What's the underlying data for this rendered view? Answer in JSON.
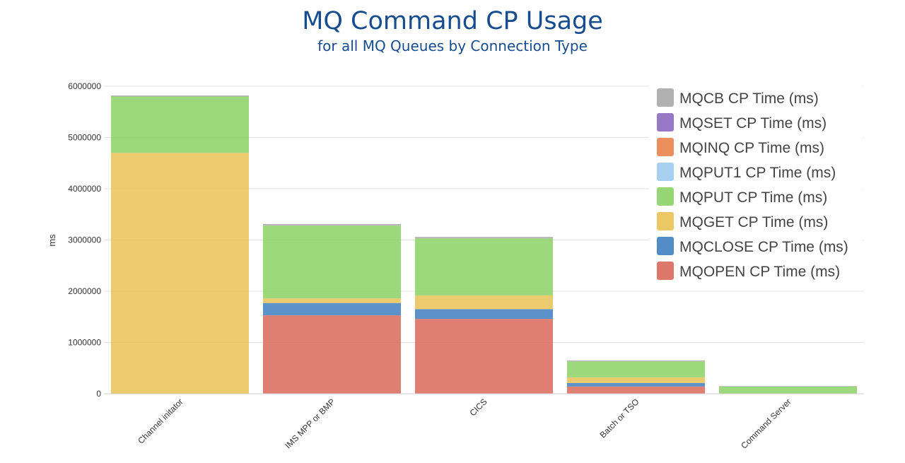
{
  "chart_data": {
    "type": "bar",
    "stacked": true,
    "title": "MQ Command CP Usage",
    "subtitle": "for all MQ Queues by Connection Type",
    "ylabel": "ms",
    "xlabel": "",
    "ylim": [
      0,
      6000000
    ],
    "yticks": [
      "0",
      "1000000",
      "2000000",
      "3000000",
      "4000000",
      "5000000",
      "6000000"
    ],
    "grid": true,
    "legend_position": "top-right",
    "categories": [
      "Channel initator",
      "IMS MPP or BMP",
      "CICS",
      "Batch or TSO",
      "Command Server"
    ],
    "series": [
      {
        "name": "MQOPEN CP Time (ms)",
        "color": "#d9685a",
        "values": [
          0,
          1530000,
          1460000,
          140000,
          0
        ]
      },
      {
        "name": "MQCLOSE CP Time (ms)",
        "color": "#3f7fc1",
        "values": [
          0,
          240000,
          190000,
          70000,
          0
        ]
      },
      {
        "name": "MQGET CP Time (ms)",
        "color": "#e9c155",
        "values": [
          4700000,
          90000,
          270000,
          110000,
          0
        ]
      },
      {
        "name": "MQPUT1 CP Time (ms)",
        "color": "#9dcbf0",
        "values": [
          0,
          0,
          0,
          0,
          0
        ]
      },
      {
        "name": "MQPUT CP Time (ms)",
        "color": "#8bd165",
        "values": [
          1100000,
          1420000,
          1110000,
          310000,
          140000
        ]
      },
      {
        "name": "MQINQ CP Time (ms)",
        "color": "#e9834a",
        "values": [
          0,
          0,
          0,
          0,
          0
        ]
      },
      {
        "name": "MQSET CP Time (ms)",
        "color": "#8e6ac0",
        "values": [
          0,
          0,
          0,
          0,
          0
        ]
      },
      {
        "name": "MQCB CP Time (ms)",
        "color": "#a8a8a8",
        "values": [
          20000,
          30000,
          30000,
          20000,
          10000
        ]
      }
    ],
    "legend_order": [
      "MQCB CP Time (ms)",
      "MQSET CP Time (ms)",
      "MQINQ CP Time (ms)",
      "MQPUT1 CP Time (ms)",
      "MQPUT CP Time (ms)",
      "MQGET CP Time (ms)",
      "MQCLOSE CP Time (ms)",
      "MQOPEN CP Time (ms)"
    ]
  }
}
